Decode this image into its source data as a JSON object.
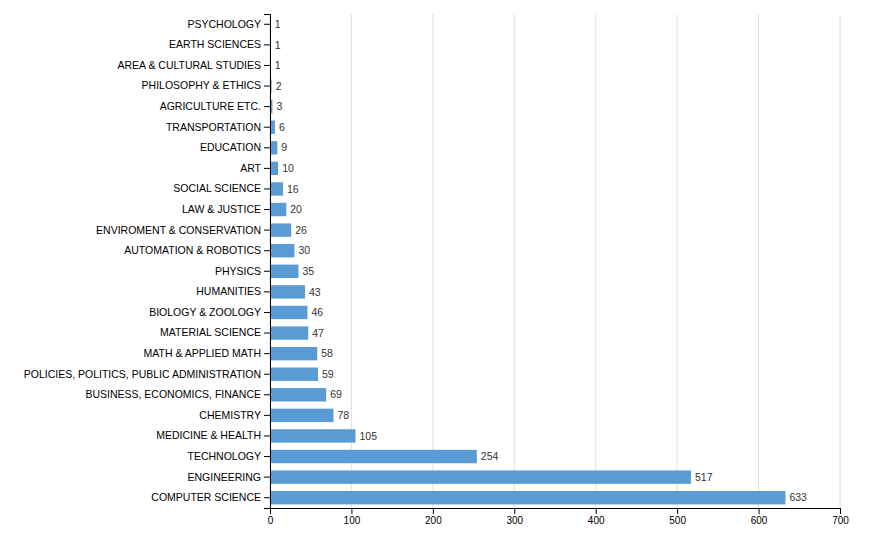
{
  "chart_data": {
    "type": "bar",
    "orientation": "horizontal",
    "categories": [
      "PSYCHOLOGY",
      "EARTH SCIENCES",
      "AREA & CULTURAL STUDIES",
      "PHILOSOPHY & ETHICS",
      "AGRICULTURE ETC.",
      "TRANSPORTATION",
      "EDUCATION",
      "ART",
      "SOCIAL SCIENCE",
      "LAW & JUSTICE",
      "ENVIROMENT & CONSERVATION",
      "AUTOMATION & ROBOTICS",
      "PHYSICS",
      "HUMANITIES",
      "BIOLOGY & ZOOLOGY",
      "MATERIAL SCIENCE",
      "MATH & APPLIED MATH",
      "POLICIES, POLITICS, PUBLIC ADMINISTRATION",
      "BUSINESS, ECONOMICS, FINANCE",
      "CHEMISTRY",
      "MEDICINE & HEALTH",
      "TECHNOLOGY",
      "ENGINEERING",
      "COMPUTER SCIENCE"
    ],
    "values": [
      1,
      1,
      1,
      2,
      3,
      6,
      9,
      10,
      16,
      20,
      26,
      30,
      35,
      43,
      46,
      47,
      58,
      59,
      69,
      78,
      105,
      254,
      517,
      633
    ],
    "color": "#5b9bd5",
    "xlim": [
      0,
      700
    ],
    "xticks": [
      0,
      100,
      200,
      300,
      400,
      500,
      600,
      700
    ],
    "grid": true,
    "data_labels": true
  }
}
